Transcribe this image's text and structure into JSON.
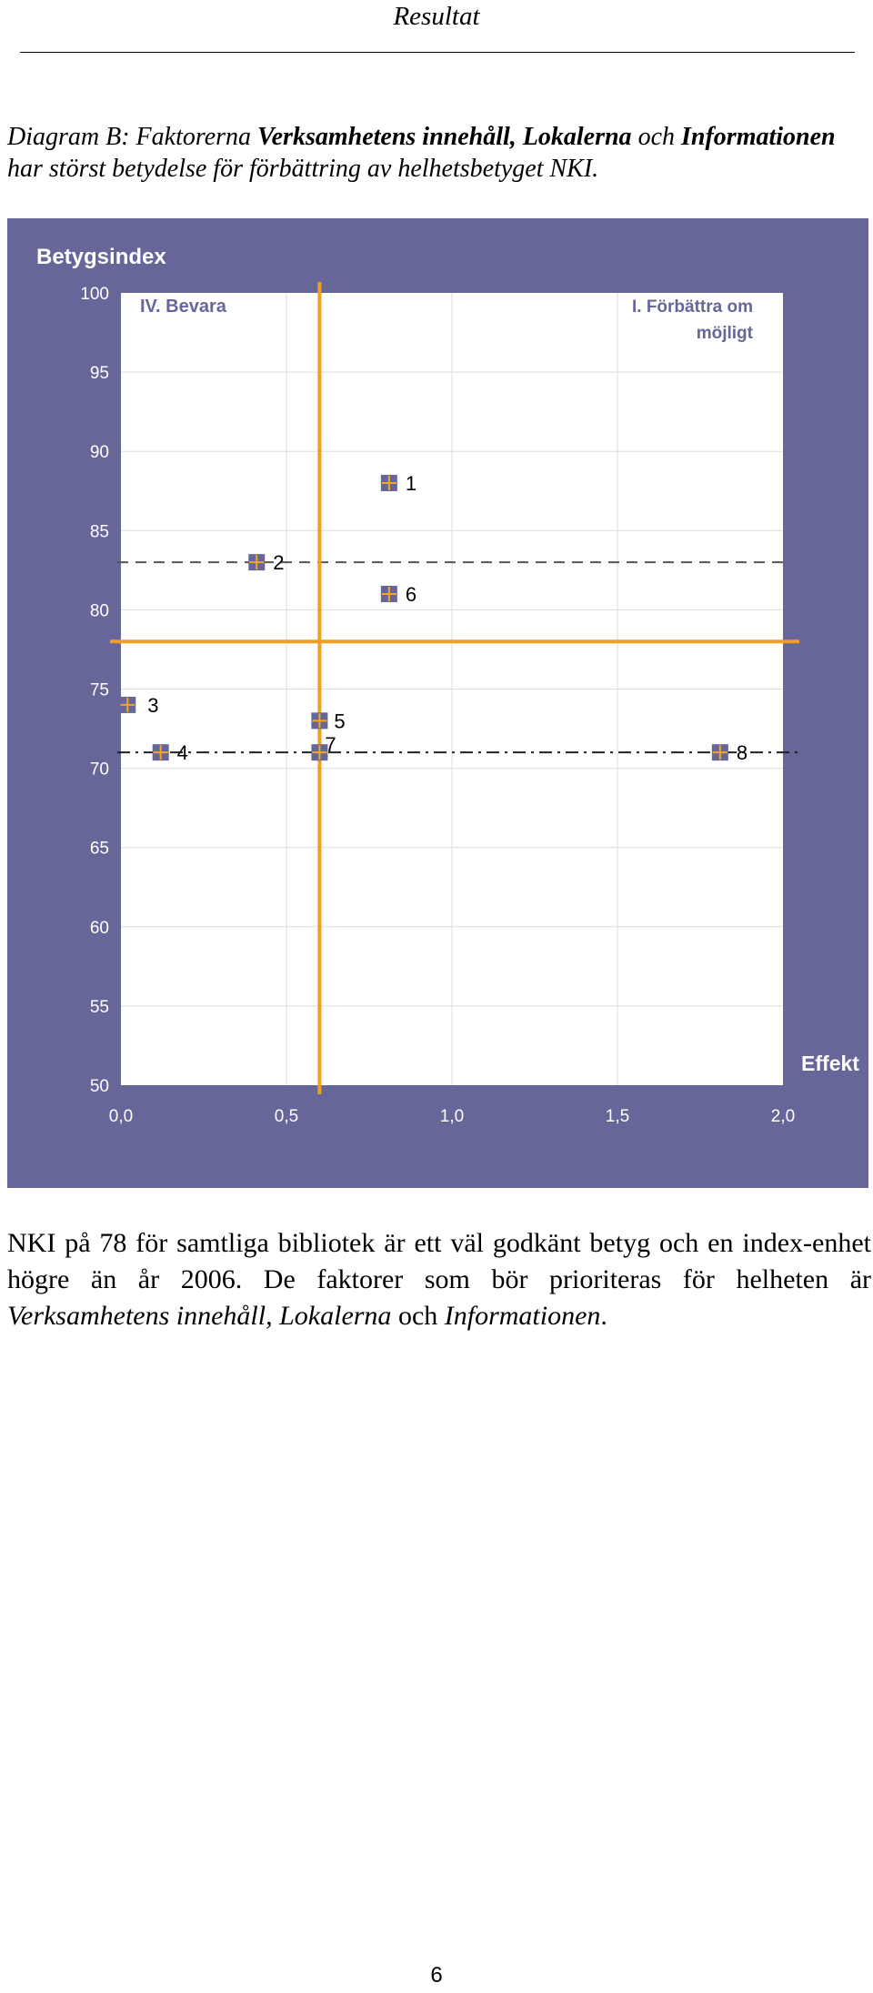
{
  "header": {
    "title": "Resultat"
  },
  "caption": {
    "part1": "Diagram B: Faktorerna ",
    "bold1": "Verksamhetens innehåll, Lokalerna",
    "part2": " och ",
    "bold2": "Informationen",
    "part3": " har störst betydelse för förbättring av helhetsbetyget NKI."
  },
  "body_text": {
    "part1": "NKI på 78 för samtliga bibliotek är ett väl godkänt betyg och en index-enhet högre än år 2006. De faktorer som bör prioriteras för helheten är ",
    "italic1": "Verksamhetens innehåll, Lokalerna",
    "part2": " och ",
    "italic2": "Informationen",
    "part3": "."
  },
  "page_number": "6",
  "colors": {
    "frame": "#666699",
    "plot_bg": "#ffffff",
    "marker_fill": "#666699",
    "marker_cross": "#f5a623",
    "orange_line": "#f0a020",
    "grid": "#dddddd",
    "dashed_line": "#555555",
    "axis_text": "#ffffff"
  },
  "chart_data": {
    "type": "scatter",
    "title": "Betygsindex",
    "xlabel": "Effekt",
    "ylabel": "Betygsindex",
    "xlim": [
      0.0,
      2.0
    ],
    "ylim": [
      50,
      100
    ],
    "x_ticks": [
      "0,0",
      "0,5",
      "1,0",
      "1,5",
      "2,0"
    ],
    "x_tick_values": [
      0.0,
      0.5,
      1.0,
      1.5,
      2.0
    ],
    "y_ticks": [
      "100",
      "95",
      "90",
      "85",
      "80",
      "75",
      "70",
      "65",
      "60",
      "55",
      "50"
    ],
    "y_tick_values": [
      100,
      95,
      90,
      85,
      80,
      75,
      70,
      65,
      60,
      55,
      50
    ],
    "quadrant_labels": [
      {
        "text": "IV. Bevara",
        "position": "top-left"
      },
      {
        "text": "I. Förbättra om möjligt",
        "position": "top-right"
      }
    ],
    "points": [
      {
        "label": "1",
        "x": 0.81,
        "y": 88.0
      },
      {
        "label": "2",
        "x": 0.41,
        "y": 83.0
      },
      {
        "label": "3",
        "x": 0.02,
        "y": 74.0
      },
      {
        "label": "4",
        "x": 0.12,
        "y": 71.0
      },
      {
        "label": "5",
        "x": 0.6,
        "y": 73.0
      },
      {
        "label": "6",
        "x": 0.81,
        "y": 81.0
      },
      {
        "label": "7",
        "x": 0.6,
        "y": 71.0
      },
      {
        "label": "8",
        "x": 1.81,
        "y": 71.0
      }
    ],
    "reference_lines": {
      "vertical_x": 0.6,
      "horizontal_y": 78,
      "dashed_y": 83,
      "dashdot_y": 71
    },
    "grid": true
  }
}
